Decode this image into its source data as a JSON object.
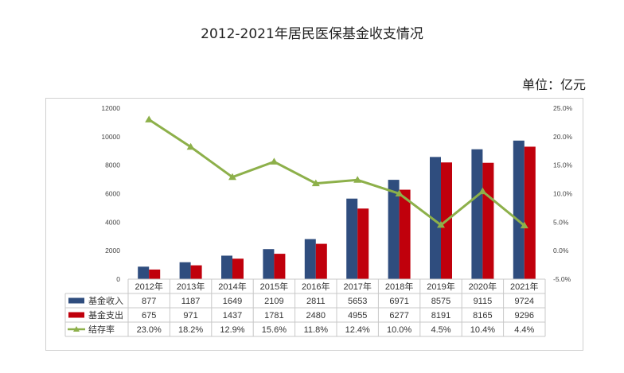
{
  "page_title": "2012-2021年居民医保基金收支情况",
  "unit_label": "单位：亿元",
  "colors": {
    "income": "#2F4D7E",
    "expense": "#C0000C",
    "rate": "#8DB04A"
  },
  "chart_data": {
    "type": "bar",
    "title": "2012-2021年居民医保基金收支情况",
    "categories": [
      "2012年",
      "2013年",
      "2014年",
      "2015年",
      "2016年",
      "2017年",
      "2018年",
      "2019年",
      "2020年",
      "2021年"
    ],
    "series": [
      {
        "name": "基金收入",
        "type": "bar",
        "axis": "left",
        "values": [
          877,
          1187,
          1649,
          2109,
          2811,
          5653,
          6971,
          8575,
          9115,
          9724
        ],
        "labels": [
          "877",
          "1187",
          "1649",
          "2109",
          "2811",
          "5653",
          "6971",
          "8575",
          "9115",
          "9724"
        ]
      },
      {
        "name": "基金支出",
        "type": "bar",
        "axis": "left",
        "values": [
          675,
          971,
          1437,
          1781,
          2480,
          4955,
          6277,
          8191,
          8165,
          9296
        ],
        "labels": [
          "675",
          "971",
          "1437",
          "1781",
          "2480",
          "4955",
          "6277",
          "8191",
          "8165",
          "9296"
        ]
      },
      {
        "name": "结存率",
        "type": "line",
        "axis": "right",
        "values": [
          23.0,
          18.2,
          12.9,
          15.6,
          11.8,
          12.4,
          10.0,
          4.5,
          10.4,
          4.4
        ],
        "labels": [
          "23.0%",
          "18.2%",
          "12.9%",
          "15.6%",
          "11.8%",
          "12.4%",
          "10.0%",
          "4.5%",
          "10.4%",
          "4.4%"
        ]
      }
    ],
    "y_left": {
      "min": 0,
      "max": 12000,
      "ticks": [
        0,
        2000,
        4000,
        6000,
        8000,
        10000,
        12000
      ],
      "tick_labels": [
        "0",
        "2000",
        "4000",
        "6000",
        "8000",
        "10000",
        "12000"
      ]
    },
    "y_right": {
      "min": -5,
      "max": 25,
      "ticks": [
        -5,
        0,
        5,
        10,
        15,
        20,
        25
      ],
      "tick_labels": [
        "-5.0%",
        "0.0%",
        "5.0%",
        "10.0%",
        "15.0%",
        "20.0%",
        "25.0%"
      ]
    },
    "legend_position": "data-table",
    "grid": false
  }
}
